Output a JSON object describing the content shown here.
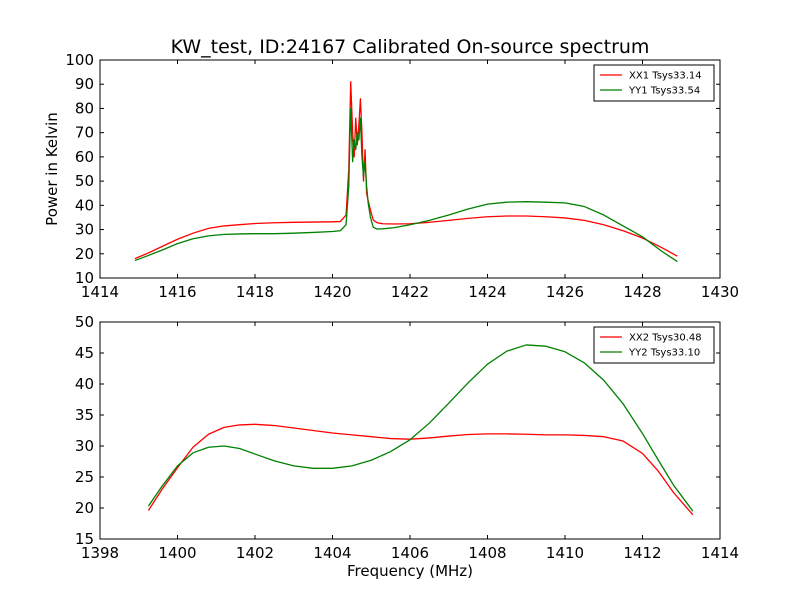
{
  "figure": {
    "title": "KW_test, ID:24167 Calibrated On-source spectrum"
  },
  "chart_data": [
    {
      "type": "line",
      "title": "KW_test, ID:24167 Calibrated On-source spectrum",
      "xlabel": "",
      "ylabel": "Power in Kelvin",
      "xlim": [
        1414,
        1430
      ],
      "ylim": [
        10,
        100
      ],
      "xticks": [
        1414,
        1416,
        1418,
        1420,
        1422,
        1424,
        1426,
        1428,
        1430
      ],
      "yticks": [
        10,
        20,
        30,
        40,
        50,
        60,
        70,
        80,
        90,
        100
      ],
      "grid": false,
      "legend_position": "top-right",
      "series": [
        {
          "name": "XX1 Tsys33.14",
          "color": "#ff0000",
          "x": [
            1414.9,
            1415.2,
            1415.6,
            1416.0,
            1416.4,
            1416.8,
            1417.2,
            1417.6,
            1418.0,
            1418.5,
            1419.0,
            1419.5,
            1420.0,
            1420.2,
            1420.35,
            1420.42,
            1420.47,
            1420.52,
            1420.56,
            1420.6,
            1420.64,
            1420.68,
            1420.72,
            1420.76,
            1420.8,
            1420.84,
            1420.88,
            1420.92,
            1420.98,
            1421.05,
            1421.15,
            1421.3,
            1421.6,
            1422.0,
            1422.5,
            1423.0,
            1423.5,
            1424.0,
            1424.5,
            1425.0,
            1425.5,
            1426.0,
            1426.5,
            1427.0,
            1427.5,
            1428.0,
            1428.5,
            1428.9
          ],
          "y": [
            18,
            20,
            23,
            26,
            28.5,
            30.5,
            31.5,
            32,
            32.5,
            32.8,
            33,
            33.1,
            33.2,
            33.3,
            36,
            55,
            91,
            70,
            60,
            76,
            65,
            73,
            84,
            70,
            50,
            63,
            45,
            42,
            38,
            34,
            32.8,
            32.4,
            32.3,
            32.4,
            33,
            33.8,
            34.6,
            35.3,
            35.6,
            35.6,
            35.3,
            34.8,
            33.8,
            32,
            29.5,
            26.5,
            22.5,
            19
          ]
        },
        {
          "name": "YY1 Tsys33.54",
          "color": "#008000",
          "x": [
            1414.9,
            1415.2,
            1415.6,
            1416.0,
            1416.4,
            1416.8,
            1417.2,
            1417.6,
            1418.0,
            1418.5,
            1419.0,
            1419.5,
            1420.0,
            1420.2,
            1420.35,
            1420.42,
            1420.47,
            1420.52,
            1420.56,
            1420.6,
            1420.64,
            1420.68,
            1420.72,
            1420.76,
            1420.8,
            1420.84,
            1420.88,
            1420.92,
            1420.98,
            1421.05,
            1421.15,
            1421.3,
            1421.6,
            1422.0,
            1422.5,
            1423.0,
            1423.5,
            1424.0,
            1424.5,
            1425.0,
            1425.5,
            1426.0,
            1426.5,
            1427.0,
            1427.5,
            1428.0,
            1428.5,
            1428.9
          ],
          "y": [
            17.2,
            19,
            21.5,
            24.2,
            26.2,
            27.4,
            28,
            28.2,
            28.3,
            28.3,
            28.5,
            28.8,
            29.2,
            29.5,
            32,
            48,
            80,
            58,
            67,
            63,
            70,
            67,
            76,
            60,
            52,
            58,
            48,
            41,
            35,
            31,
            30.2,
            30.3,
            30.8,
            32,
            33.8,
            36,
            38.5,
            40.5,
            41.3,
            41.5,
            41.3,
            41,
            39.5,
            36,
            31.5,
            27,
            21,
            16.8
          ]
        }
      ]
    },
    {
      "type": "line",
      "title": "",
      "xlabel": "Frequency (MHz)",
      "ylabel": "",
      "xlim": [
        1398,
        1414
      ],
      "ylim": [
        15,
        50
      ],
      "xticks": [
        1398,
        1400,
        1402,
        1404,
        1406,
        1408,
        1410,
        1412,
        1414
      ],
      "yticks": [
        15,
        20,
        25,
        30,
        35,
        40,
        45,
        50
      ],
      "grid": false,
      "legend_position": "top-right",
      "series": [
        {
          "name": "XX2 Tsys30.48",
          "color": "#ff0000",
          "x": [
            1399.25,
            1399.6,
            1400.0,
            1400.4,
            1400.8,
            1401.2,
            1401.6,
            1402.0,
            1402.5,
            1403.0,
            1403.5,
            1404.0,
            1404.5,
            1405.0,
            1405.5,
            1406.0,
            1406.5,
            1407.0,
            1407.5,
            1408.0,
            1408.5,
            1409.0,
            1409.5,
            1410.0,
            1410.5,
            1411.0,
            1411.5,
            1412.0,
            1412.4,
            1412.8,
            1413.3
          ],
          "y": [
            19.6,
            23,
            26.5,
            29.8,
            31.9,
            33,
            33.4,
            33.5,
            33.3,
            32.9,
            32.5,
            32.1,
            31.8,
            31.5,
            31.2,
            31.1,
            31.3,
            31.6,
            31.85,
            31.95,
            31.95,
            31.9,
            31.8,
            31.8,
            31.7,
            31.5,
            30.8,
            28.8,
            26,
            22.5,
            18.9
          ]
        },
        {
          "name": "YY2 Tsys33.10",
          "color": "#008000",
          "x": [
            1399.25,
            1399.6,
            1400.0,
            1400.4,
            1400.8,
            1401.2,
            1401.6,
            1402.0,
            1402.5,
            1403.0,
            1403.5,
            1404.0,
            1404.5,
            1405.0,
            1405.5,
            1406.0,
            1406.5,
            1407.0,
            1407.5,
            1408.0,
            1408.5,
            1409.0,
            1409.5,
            1410.0,
            1410.5,
            1411.0,
            1411.5,
            1412.0,
            1412.4,
            1412.8,
            1413.3
          ],
          "y": [
            20.3,
            23.5,
            26.8,
            28.9,
            29.8,
            30,
            29.6,
            28.7,
            27.6,
            26.8,
            26.4,
            26.4,
            26.8,
            27.7,
            29.1,
            31,
            33.7,
            36.9,
            40.2,
            43.2,
            45.3,
            46.3,
            46.1,
            45.2,
            43.4,
            40.6,
            36.8,
            32,
            27.8,
            23.7,
            19.5
          ]
        }
      ]
    }
  ]
}
